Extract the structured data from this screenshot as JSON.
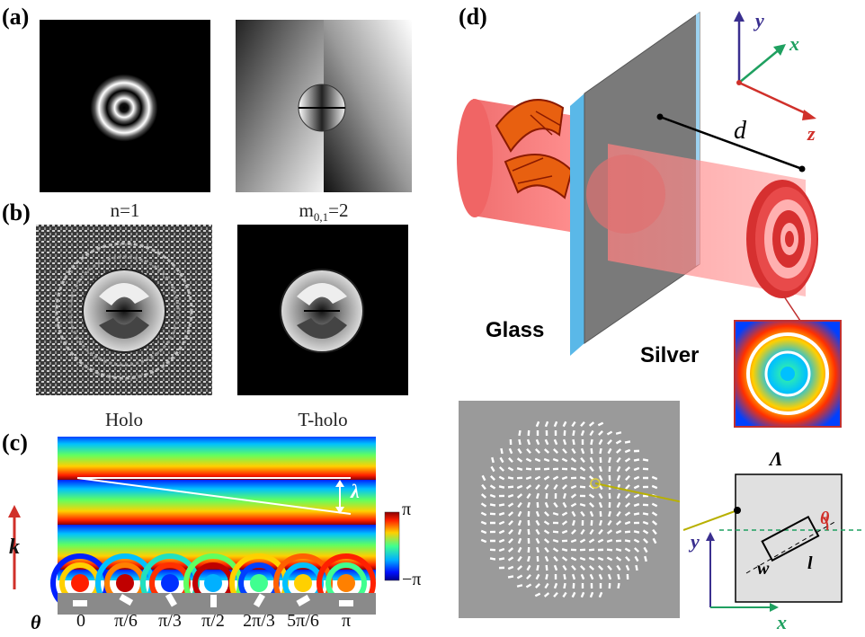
{
  "panel_labels": {
    "a": "(a)",
    "b": "(b)",
    "c": "(c)",
    "d": "(d)"
  },
  "panel_a": {
    "caption_left": "n=1",
    "caption_right_main": "m",
    "caption_right_sub": "0,1",
    "caption_right_tail": "=2"
  },
  "panel_b": {
    "caption_left": "Holo",
    "caption_right": "T-holo"
  },
  "panel_c": {
    "theta_symbol": "θ",
    "theta_ticks": [
      "0",
      "π/6",
      "π/3",
      "π/2",
      "2π/3",
      "5π/6",
      "π"
    ],
    "k_label": "k",
    "lambda_label": "λ",
    "colorbar_max": "π",
    "colorbar_min": "−π"
  },
  "panel_d": {
    "glass_label": "Glass",
    "silver_label": "Silver",
    "d_label": "d",
    "axes": {
      "x": "x",
      "y": "y",
      "z": "z"
    },
    "unit_cell": {
      "period": "Λ",
      "width": "w",
      "length": "l",
      "angle": "θ"
    },
    "cell_axes": {
      "x": "x",
      "y": "y"
    }
  },
  "colors": {
    "beam": "#ef5a5a",
    "glass": "#5ab8e8",
    "silver": "#808080",
    "axis_x": "#1fa060",
    "axis_y": "#3a2f8f",
    "axis_z": "#d0302a"
  }
}
